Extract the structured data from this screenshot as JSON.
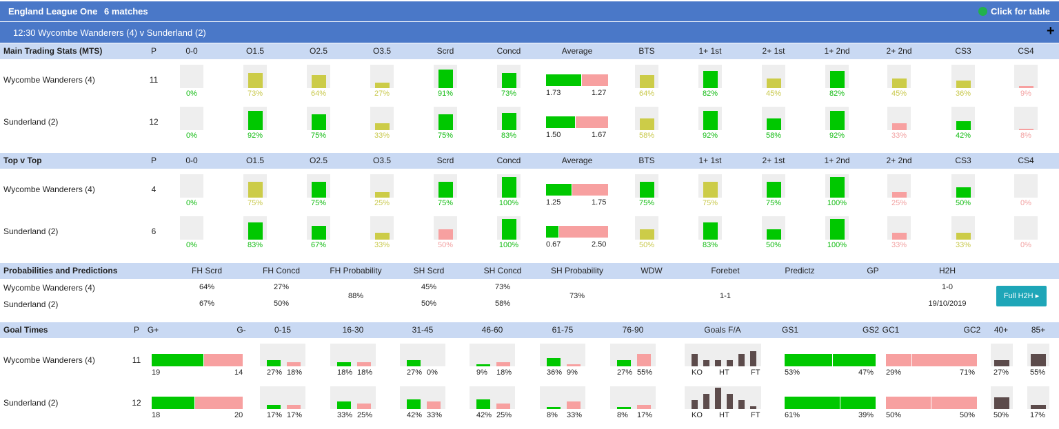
{
  "header": {
    "league": "England League One",
    "matches": "6 matches",
    "table_link": "Click for table",
    "status_icon_color": "#22b14c"
  },
  "match": {
    "title": "12:30  Wycombe Wanderers (4) v Sunderland (2)",
    "expand_icon": "plus-icon"
  },
  "colors": {
    "header": "#4a78c8",
    "section": "#c9d9f3",
    "green": "#00c800",
    "olive": "#cccc48",
    "pink": "#f7a0a0",
    "brown": "#5c4b4b"
  },
  "columns": [
    "P",
    "0-0",
    "O1.5",
    "O2.5",
    "O3.5",
    "Scrd",
    "Concd",
    "Average",
    "BTS",
    "1+ 1st",
    "2+ 1st",
    "1+ 2nd",
    "2+ 2nd",
    "CS3",
    "CS4"
  ],
  "mts": {
    "title": "Main Trading Stats (MTS)",
    "rows": [
      {
        "team": "Wycombe Wanderers (4)",
        "p": "11",
        "avg": [
          "1.73",
          "1.27"
        ],
        "cells": [
          [
            0,
            "g"
          ],
          [
            73,
            "y"
          ],
          [
            64,
            "y"
          ],
          [
            27,
            "y"
          ],
          [
            91,
            "g"
          ],
          [
            73,
            "g"
          ],
          [
            64,
            "y"
          ],
          [
            82,
            "g"
          ],
          [
            45,
            "y"
          ],
          [
            82,
            "g"
          ],
          [
            45,
            "y"
          ],
          [
            36,
            "y"
          ],
          [
            9,
            "r"
          ]
        ]
      },
      {
        "team": "Sunderland (2)",
        "p": "12",
        "avg": [
          "1.50",
          "1.67"
        ],
        "cells": [
          [
            0,
            "g"
          ],
          [
            92,
            "g"
          ],
          [
            75,
            "g"
          ],
          [
            33,
            "y"
          ],
          [
            75,
            "g"
          ],
          [
            83,
            "g"
          ],
          [
            58,
            "y"
          ],
          [
            92,
            "g"
          ],
          [
            58,
            "g"
          ],
          [
            92,
            "g"
          ],
          [
            33,
            "r"
          ],
          [
            42,
            "g"
          ],
          [
            8,
            "r"
          ]
        ]
      }
    ]
  },
  "tvt": {
    "title": "Top v Top",
    "rows": [
      {
        "team": "Wycombe Wanderers (4)",
        "p": "4",
        "avg": [
          "1.25",
          "1.75"
        ],
        "cells": [
          [
            0,
            "g"
          ],
          [
            75,
            "y"
          ],
          [
            75,
            "g"
          ],
          [
            25,
            "y"
          ],
          [
            75,
            "g"
          ],
          [
            100,
            "g"
          ],
          [
            75,
            "g"
          ],
          [
            75,
            "y"
          ],
          [
            75,
            "g"
          ],
          [
            100,
            "g"
          ],
          [
            25,
            "r"
          ],
          [
            50,
            "g"
          ],
          [
            0,
            "r"
          ]
        ]
      },
      {
        "team": "Sunderland (2)",
        "p": "6",
        "avg": [
          "0.67",
          "2.50"
        ],
        "cells": [
          [
            0,
            "g"
          ],
          [
            83,
            "g"
          ],
          [
            67,
            "g"
          ],
          [
            33,
            "y"
          ],
          [
            50,
            "r"
          ],
          [
            100,
            "g"
          ],
          [
            50,
            "y"
          ],
          [
            83,
            "g"
          ],
          [
            50,
            "g"
          ],
          [
            100,
            "g"
          ],
          [
            33,
            "r"
          ],
          [
            33,
            "y"
          ],
          [
            0,
            "r"
          ]
        ]
      }
    ]
  },
  "prob": {
    "title": "Probabilities and Predictions",
    "columns": [
      "FH Scrd",
      "FH Concd",
      "FH Probability",
      "SH Scrd",
      "SH Concd",
      "SH Probability",
      "WDW",
      "Forebet",
      "Predictz",
      "GP",
      "H2H"
    ],
    "rows": [
      {
        "team": "Wycombe Wanderers (4)",
        "fh_scrd": "64%",
        "fh_concd": "27%",
        "sh_scrd": "45%",
        "sh_concd": "73%",
        "h2h": "1-0"
      },
      {
        "team": "Sunderland (2)",
        "fh_scrd": "67%",
        "fh_concd": "50%",
        "sh_scrd": "50%",
        "sh_concd": "58%",
        "h2h": "19/10/2019"
      }
    ],
    "fh_probability": "88%",
    "sh_probability": "73%",
    "forebet": "1-1",
    "full_h2h": "Full H2H"
  },
  "goal_times": {
    "title": "Goal Times",
    "columns": [
      "P",
      "G+",
      "G-",
      "0-15",
      "16-30",
      "31-45",
      "46-60",
      "61-75",
      "76-90",
      "Goals F/A",
      "GS1",
      "GS2",
      "GC1",
      "GC2",
      "40+",
      "85+"
    ],
    "axis_labels": [
      "KO",
      "HT",
      "FT"
    ],
    "rows": [
      {
        "team": "Wycombe Wanderers (4)",
        "p": "11",
        "g_for": 19,
        "g_against": 14,
        "intervals": [
          [
            27,
            18
          ],
          [
            18,
            18
          ],
          [
            27,
            0
          ],
          [
            9,
            18
          ],
          [
            36,
            9
          ],
          [
            27,
            55
          ]
        ],
        "goals_fa": [
          4,
          2,
          2,
          2,
          4,
          5
        ],
        "gs": [
          53,
          47
        ],
        "gc": [
          29,
          71
        ],
        "p40": 27,
        "p85": 55
      },
      {
        "team": "Sunderland (2)",
        "p": "12",
        "g_for": 18,
        "g_against": 20,
        "intervals": [
          [
            17,
            17
          ],
          [
            33,
            25
          ],
          [
            42,
            33
          ],
          [
            42,
            25
          ],
          [
            8,
            33
          ],
          [
            8,
            17
          ]
        ],
        "goals_fa": [
          3,
          5,
          7,
          5,
          3,
          1
        ],
        "gs": [
          61,
          39
        ],
        "gc": [
          50,
          50
        ],
        "p40": 50,
        "p85": 17
      }
    ]
  }
}
